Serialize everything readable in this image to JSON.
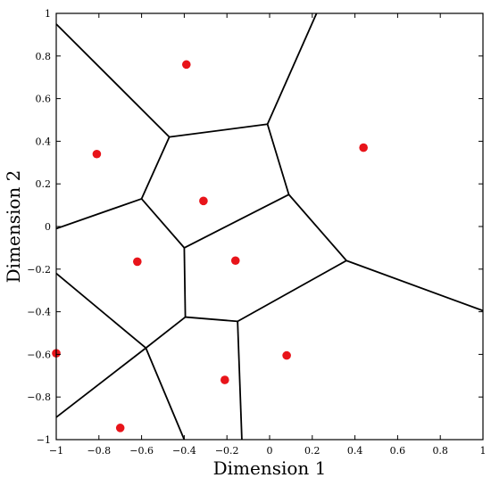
{
  "chart_data": {
    "type": "scatter",
    "title": "",
    "xlabel": "Dimension 1",
    "ylabel": "Dimension 2",
    "xlim": [
      -1,
      1
    ],
    "ylim": [
      -1,
      1
    ],
    "grid": false,
    "point_color": "#e8141a",
    "edge_color": "#000000",
    "xticks": [
      "-1",
      "-0.8",
      "-0.6",
      "-0.4",
      "-0.2",
      "0",
      "0.2",
      "0.4",
      "0.6",
      "0.8",
      "1"
    ],
    "yticks": [
      "-1",
      "-0.8",
      "-0.6",
      "-0.4",
      "-0.2",
      "0",
      "0.2",
      "0.4",
      "0.6",
      "0.8",
      "1"
    ],
    "points": [
      {
        "x": -0.39,
        "y": 0.76
      },
      {
        "x": -0.81,
        "y": 0.34
      },
      {
        "x": 0.44,
        "y": 0.37
      },
      {
        "x": -0.31,
        "y": 0.12
      },
      {
        "x": -0.62,
        "y": -0.165
      },
      {
        "x": -0.16,
        "y": -0.16
      },
      {
        "x": -1.0,
        "y": -0.595
      },
      {
        "x": 0.08,
        "y": -0.605
      },
      {
        "x": -0.21,
        "y": -0.72
      },
      {
        "x": -0.7,
        "y": -0.945
      }
    ],
    "voronoi_edges": [
      [
        [
          -1.0,
          0.95
        ],
        [
          -0.47,
          0.42
        ]
      ],
      [
        [
          -0.47,
          0.42
        ],
        [
          -0.01,
          0.48
        ]
      ],
      [
        [
          -0.01,
          0.48
        ],
        [
          0.22,
          1.0
        ]
      ],
      [
        [
          -0.01,
          0.48
        ],
        [
          0.09,
          0.15
        ]
      ],
      [
        [
          -0.47,
          0.42
        ],
        [
          -0.6,
          0.13
        ]
      ],
      [
        [
          -0.6,
          0.13
        ],
        [
          -1.0,
          -0.01
        ]
      ],
      [
        [
          -0.6,
          0.13
        ],
        [
          -0.4,
          -0.1
        ]
      ],
      [
        [
          -0.4,
          -0.1
        ],
        [
          0.09,
          0.15
        ]
      ],
      [
        [
          0.09,
          0.15
        ],
        [
          0.36,
          -0.16
        ]
      ],
      [
        [
          0.36,
          -0.16
        ],
        [
          1.0,
          -0.395
        ]
      ],
      [
        [
          0.36,
          -0.16
        ],
        [
          -0.15,
          -0.445
        ]
      ],
      [
        [
          -0.4,
          -0.1
        ],
        [
          -0.395,
          -0.425
        ]
      ],
      [
        [
          -0.395,
          -0.425
        ],
        [
          -0.15,
          -0.445
        ]
      ],
      [
        [
          -0.15,
          -0.445
        ],
        [
          -0.13,
          -1.0
        ]
      ],
      [
        [
          -0.395,
          -0.425
        ],
        [
          -0.58,
          -0.57
        ]
      ],
      [
        [
          -0.58,
          -0.57
        ],
        [
          -1.0,
          -0.22
        ]
      ],
      [
        [
          -0.58,
          -0.57
        ],
        [
          -1.0,
          -0.895
        ]
      ],
      [
        [
          -0.58,
          -0.57
        ],
        [
          -0.4,
          -1.0
        ]
      ]
    ]
  }
}
